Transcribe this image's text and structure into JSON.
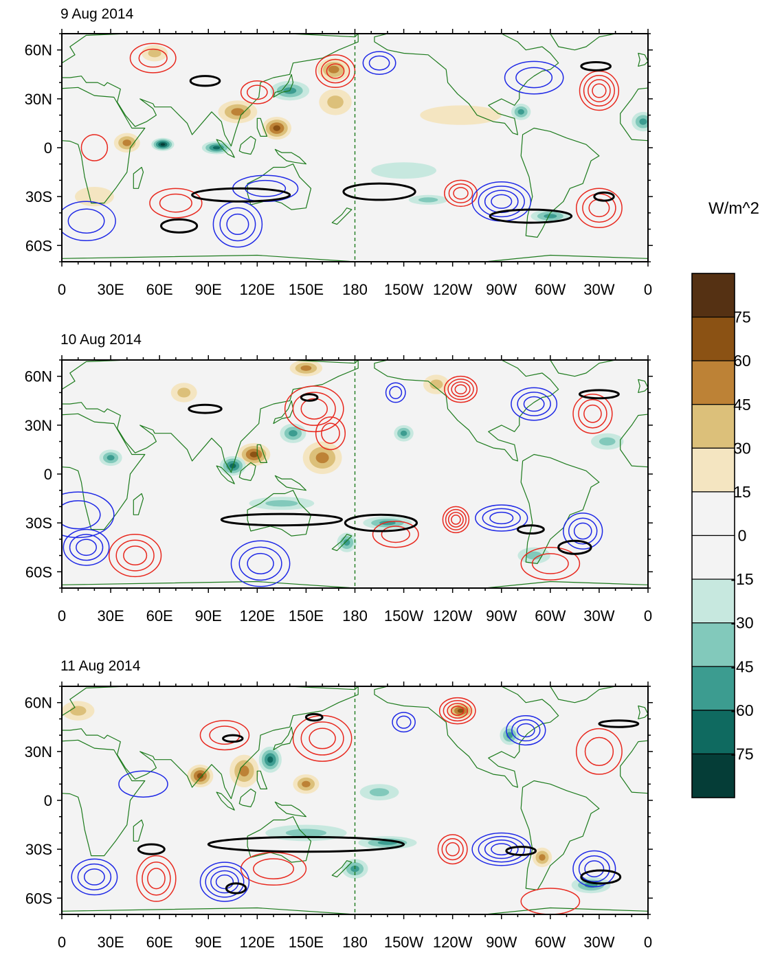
{
  "chart_data": {
    "type": "map-contour",
    "variable_units": "W/m^2",
    "x_ticks": [
      "0",
      "30E",
      "60E",
      "90E",
      "120E",
      "150E",
      "180",
      "150W",
      "120W",
      "90W",
      "60W",
      "30W",
      "0"
    ],
    "y_ticks": [
      "60N",
      "30N",
      "0",
      "30S",
      "60S"
    ],
    "y_tick_values": [
      60,
      30,
      0,
      -30,
      -60
    ],
    "lon_range": [
      0,
      360
    ],
    "lat_range": [
      -70,
      70
    ],
    "dateline_lon": 180,
    "colorbar": {
      "label": "W/m^2",
      "levels": [
        "75",
        "60",
        "45",
        "30",
        "15",
        "0",
        "-15",
        "-30",
        "-45",
        "-60",
        "-75"
      ],
      "colors": [
        "#553113",
        "#8b5214",
        "#bd8236",
        "#dcc07a",
        "#f4e5c1",
        "#f3f3f3",
        "#f3f3f3",
        "#c7e8df",
        "#82c9bb",
        "#3c9c90",
        "#0f6a60",
        "#053d37"
      ]
    },
    "contour_colors": {
      "positive": "#e8281e",
      "negative": "#1e28e6",
      "highlight": "#000000",
      "coast": "#1c7a1c"
    },
    "panels": [
      {
        "title": "9 Aug 2014",
        "blobs": [
          {
            "lon": 108,
            "lat": 22,
            "v": 45,
            "rx": 12,
            "ry": 7
          },
          {
            "lon": 132,
            "lat": 12,
            "v": 60,
            "rx": 9,
            "ry": 7
          },
          {
            "lon": 95,
            "lat": 0,
            "v": -60,
            "rx": 9,
            "ry": 4
          },
          {
            "lon": 62,
            "lat": 2,
            "v": -75,
            "rx": 7,
            "ry": 4
          },
          {
            "lon": 40,
            "lat": 3,
            "v": 45,
            "rx": 8,
            "ry": 6
          },
          {
            "lon": 167,
            "lat": 48,
            "v": 45,
            "rx": 10,
            "ry": 7
          },
          {
            "lon": 140,
            "lat": 35,
            "v": -45,
            "rx": 12,
            "ry": 6
          },
          {
            "lon": 168,
            "lat": 28,
            "v": 30,
            "rx": 10,
            "ry": 8
          },
          {
            "lon": 57,
            "lat": 58,
            "v": 30,
            "rx": 8,
            "ry": 5
          },
          {
            "lon": 357,
            "lat": 16,
            "v": -45,
            "rx": 7,
            "ry": 6
          },
          {
            "lon": 282,
            "lat": 22,
            "v": -45,
            "rx": 6,
            "ry": 5
          },
          {
            "lon": 300,
            "lat": -42,
            "v": -45,
            "rx": 12,
            "ry": 4
          },
          {
            "lon": 225,
            "lat": -32,
            "v": -30,
            "rx": 12,
            "ry": 3
          },
          {
            "lon": 245,
            "lat": 20,
            "v": 15,
            "rx": 25,
            "ry": 6
          },
          {
            "lon": 210,
            "lat": -14,
            "v": -15,
            "rx": 20,
            "ry": 5
          },
          {
            "lon": 20,
            "lat": -30,
            "v": 15,
            "rx": 12,
            "ry": 6
          }
        ],
        "contours": [
          {
            "lon": 56,
            "lat": 55,
            "rx": 14,
            "ry": 9,
            "n": 2,
            "sign": 1
          },
          {
            "lon": 168,
            "lat": 47,
            "rx": 12,
            "ry": 10,
            "n": 3,
            "sign": 1
          },
          {
            "lon": 120,
            "lat": 34,
            "rx": 10,
            "ry": 7,
            "n": 2,
            "sign": 1
          },
          {
            "lon": 330,
            "lat": 35,
            "rx": 12,
            "ry": 12,
            "n": 4,
            "sign": 1
          },
          {
            "lon": 245,
            "lat": -28,
            "rx": 10,
            "ry": 8,
            "n": 3,
            "sign": 1
          },
          {
            "lon": 330,
            "lat": -37,
            "rx": 14,
            "ry": 12,
            "n": 3,
            "sign": 1
          },
          {
            "lon": 20,
            "lat": 0,
            "rx": 8,
            "ry": 8,
            "n": 1,
            "sign": 1
          },
          {
            "lon": 70,
            "lat": -34,
            "rx": 16,
            "ry": 9,
            "n": 2,
            "sign": 1
          },
          {
            "lon": 108,
            "lat": -47,
            "rx": 15,
            "ry": 14,
            "n": 3,
            "sign": -1
          },
          {
            "lon": 270,
            "lat": -33,
            "rx": 18,
            "ry": 12,
            "n": 4,
            "sign": -1
          },
          {
            "lon": 195,
            "lat": 52,
            "rx": 10,
            "ry": 7,
            "n": 2,
            "sign": -1
          },
          {
            "lon": 290,
            "lat": 43,
            "rx": 18,
            "ry": 10,
            "n": 2,
            "sign": -1
          },
          {
            "lon": 15,
            "lat": -45,
            "rx": 18,
            "ry": 12,
            "n": 2,
            "sign": -1
          },
          {
            "lon": 125,
            "lat": -25,
            "rx": 20,
            "ry": 8,
            "n": 2,
            "sign": -1
          }
        ],
        "highlights": [
          {
            "lon": 110,
            "lat": -29,
            "rx": 30,
            "ry": 4
          },
          {
            "lon": 195,
            "lat": -27,
            "rx": 22,
            "ry": 5
          },
          {
            "lon": 288,
            "lat": -42,
            "rx": 25,
            "ry": 4
          },
          {
            "lon": 328,
            "lat": 50,
            "rx": 9,
            "ry": 2.5
          },
          {
            "lon": 72,
            "lat": -48,
            "rx": 11,
            "ry": 4
          },
          {
            "lon": 88,
            "lat": 41,
            "rx": 9,
            "ry": 3
          },
          {
            "lon": 333,
            "lat": -30,
            "rx": 6,
            "ry": 2.5
          }
        ]
      },
      {
        "title": "10 Aug 2014",
        "blobs": [
          {
            "lon": 118,
            "lat": 12,
            "v": 60,
            "rx": 10,
            "ry": 7
          },
          {
            "lon": 160,
            "lat": 10,
            "v": 45,
            "rx": 12,
            "ry": 10
          },
          {
            "lon": 142,
            "lat": 25,
            "v": -45,
            "rx": 8,
            "ry": 6
          },
          {
            "lon": 105,
            "lat": 5,
            "v": -60,
            "rx": 8,
            "ry": 6
          },
          {
            "lon": 30,
            "lat": 10,
            "v": -45,
            "rx": 7,
            "ry": 5
          },
          {
            "lon": 150,
            "lat": 65,
            "v": 45,
            "rx": 10,
            "ry": 5
          },
          {
            "lon": 175,
            "lat": -42,
            "v": -45,
            "rx": 6,
            "ry": 6
          },
          {
            "lon": 200,
            "lat": -30,
            "v": -45,
            "rx": 15,
            "ry": 4
          },
          {
            "lon": 335,
            "lat": 20,
            "v": -30,
            "rx": 10,
            "ry": 5
          },
          {
            "lon": 210,
            "lat": 25,
            "v": -45,
            "rx": 6,
            "ry": 5
          },
          {
            "lon": 230,
            "lat": 55,
            "v": 30,
            "rx": 8,
            "ry": 6
          },
          {
            "lon": 290,
            "lat": -50,
            "v": -30,
            "rx": 10,
            "ry": 5
          },
          {
            "lon": 75,
            "lat": 50,
            "v": 30,
            "rx": 8,
            "ry": 6
          },
          {
            "lon": 135,
            "lat": -18,
            "v": -30,
            "rx": 20,
            "ry": 4
          }
        ],
        "contours": [
          {
            "lon": 155,
            "lat": 40,
            "rx": 18,
            "ry": 14,
            "n": 3,
            "sign": 1
          },
          {
            "lon": 245,
            "lat": 52,
            "rx": 10,
            "ry": 8,
            "n": 4,
            "sign": 1
          },
          {
            "lon": 242,
            "lat": -28,
            "rx": 8,
            "ry": 8,
            "n": 4,
            "sign": 1
          },
          {
            "lon": 326,
            "lat": 37,
            "rx": 12,
            "ry": 12,
            "n": 3,
            "sign": 1
          },
          {
            "lon": 45,
            "lat": -50,
            "rx": 16,
            "ry": 13,
            "n": 3,
            "sign": 1
          },
          {
            "lon": 300,
            "lat": -55,
            "rx": 18,
            "ry": 10,
            "n": 2,
            "sign": 1
          },
          {
            "lon": 205,
            "lat": -37,
            "rx": 14,
            "ry": 8,
            "n": 2,
            "sign": 1
          },
          {
            "lon": 165,
            "lat": 25,
            "rx": 9,
            "ry": 10,
            "n": 2,
            "sign": 1
          },
          {
            "lon": 122,
            "lat": -55,
            "rx": 18,
            "ry": 14,
            "n": 3,
            "sign": -1
          },
          {
            "lon": 15,
            "lat": -45,
            "rx": 14,
            "ry": 11,
            "n": 3,
            "sign": -1
          },
          {
            "lon": 270,
            "lat": -27,
            "rx": 16,
            "ry": 8,
            "n": 3,
            "sign": -1
          },
          {
            "lon": 290,
            "lat": 43,
            "rx": 14,
            "ry": 10,
            "n": 3,
            "sign": -1
          },
          {
            "lon": 320,
            "lat": -35,
            "rx": 12,
            "ry": 11,
            "n": 3,
            "sign": -1
          },
          {
            "lon": 205,
            "lat": 50,
            "rx": 6,
            "ry": 6,
            "n": 2,
            "sign": -1
          },
          {
            "lon": 10,
            "lat": -25,
            "rx": 22,
            "ry": 14,
            "n": 2,
            "sign": -1
          }
        ],
        "highlights": [
          {
            "lon": 135,
            "lat": -28,
            "rx": 37,
            "ry": 3.5
          },
          {
            "lon": 196,
            "lat": -30,
            "rx": 22,
            "ry": 5
          },
          {
            "lon": 315,
            "lat": -45,
            "rx": 10,
            "ry": 4
          },
          {
            "lon": 330,
            "lat": 49,
            "rx": 12,
            "ry": 2.5
          },
          {
            "lon": 288,
            "lat": -34,
            "rx": 8,
            "ry": 2.5
          },
          {
            "lon": 88,
            "lat": 40,
            "rx": 10,
            "ry": 2.5
          },
          {
            "lon": 152,
            "lat": 47,
            "rx": 5,
            "ry": 2
          }
        ]
      },
      {
        "title": "11 Aug 2014",
        "blobs": [
          {
            "lon": 85,
            "lat": 15,
            "v": 60,
            "rx": 8,
            "ry": 7
          },
          {
            "lon": 112,
            "lat": 18,
            "v": 45,
            "rx": 9,
            "ry": 10
          },
          {
            "lon": 150,
            "lat": 10,
            "v": 45,
            "rx": 8,
            "ry": 6
          },
          {
            "lon": 128,
            "lat": 25,
            "v": -60,
            "rx": 7,
            "ry": 8
          },
          {
            "lon": 245,
            "lat": 55,
            "v": 60,
            "rx": 8,
            "ry": 5
          },
          {
            "lon": 180,
            "lat": -42,
            "v": -45,
            "rx": 8,
            "ry": 6
          },
          {
            "lon": 200,
            "lat": -26,
            "v": -45,
            "rx": 18,
            "ry": 4
          },
          {
            "lon": 295,
            "lat": -35,
            "v": 45,
            "rx": 6,
            "ry": 6
          },
          {
            "lon": 325,
            "lat": -52,
            "v": -45,
            "rx": 12,
            "ry": 5
          },
          {
            "lon": 195,
            "lat": 5,
            "v": -30,
            "rx": 12,
            "ry": 5
          },
          {
            "lon": 10,
            "lat": 55,
            "v": 30,
            "rx": 10,
            "ry": 6
          },
          {
            "lon": 150,
            "lat": -20,
            "v": -30,
            "rx": 25,
            "ry": 5
          },
          {
            "lon": 275,
            "lat": 40,
            "v": -45,
            "rx": 6,
            "ry": 6
          }
        ],
        "contours": [
          {
            "lon": 160,
            "lat": 38,
            "rx": 18,
            "ry": 14,
            "n": 3,
            "sign": 1
          },
          {
            "lon": 243,
            "lat": 55,
            "rx": 11,
            "ry": 8,
            "n": 4,
            "sign": 1
          },
          {
            "lon": 240,
            "lat": -30,
            "rx": 9,
            "ry": 9,
            "n": 3,
            "sign": 1
          },
          {
            "lon": 330,
            "lat": 30,
            "rx": 14,
            "ry": 14,
            "n": 2,
            "sign": 1
          },
          {
            "lon": 58,
            "lat": -48,
            "rx": 12,
            "ry": 14,
            "n": 3,
            "sign": 1
          },
          {
            "lon": 100,
            "lat": 40,
            "rx": 15,
            "ry": 9,
            "n": 2,
            "sign": 1
          },
          {
            "lon": 130,
            "lat": -42,
            "rx": 20,
            "ry": 10,
            "n": 2,
            "sign": 1
          },
          {
            "lon": 300,
            "lat": -62,
            "rx": 18,
            "ry": 8,
            "n": 1,
            "sign": 1
          },
          {
            "lon": 100,
            "lat": -50,
            "rx": 15,
            "ry": 12,
            "n": 4,
            "sign": -1
          },
          {
            "lon": 20,
            "lat": -47,
            "rx": 14,
            "ry": 11,
            "n": 3,
            "sign": -1
          },
          {
            "lon": 270,
            "lat": -30,
            "rx": 18,
            "ry": 10,
            "n": 4,
            "sign": -1
          },
          {
            "lon": 285,
            "lat": 43,
            "rx": 12,
            "ry": 9,
            "n": 3,
            "sign": -1
          },
          {
            "lon": 327,
            "lat": -42,
            "rx": 13,
            "ry": 11,
            "n": 3,
            "sign": -1
          },
          {
            "lon": 50,
            "lat": 10,
            "rx": 15,
            "ry": 8,
            "n": 1,
            "sign": -1
          },
          {
            "lon": 210,
            "lat": 48,
            "rx": 7,
            "ry": 6,
            "n": 2,
            "sign": -1
          }
        ],
        "highlights": [
          {
            "lon": 150,
            "lat": -27,
            "rx": 60,
            "ry": 4.5
          },
          {
            "lon": 107,
            "lat": -54,
            "rx": 6,
            "ry": 3
          },
          {
            "lon": 55,
            "lat": -30,
            "rx": 8,
            "ry": 3
          },
          {
            "lon": 282,
            "lat": -31,
            "rx": 9,
            "ry": 2.5
          },
          {
            "lon": 331,
            "lat": -47,
            "rx": 12,
            "ry": 4
          },
          {
            "lon": 342,
            "lat": 47,
            "rx": 12,
            "ry": 2
          },
          {
            "lon": 155,
            "lat": 51,
            "rx": 5,
            "ry": 2
          },
          {
            "lon": 105,
            "lat": 38,
            "rx": 6,
            "ry": 2
          }
        ]
      }
    ]
  }
}
